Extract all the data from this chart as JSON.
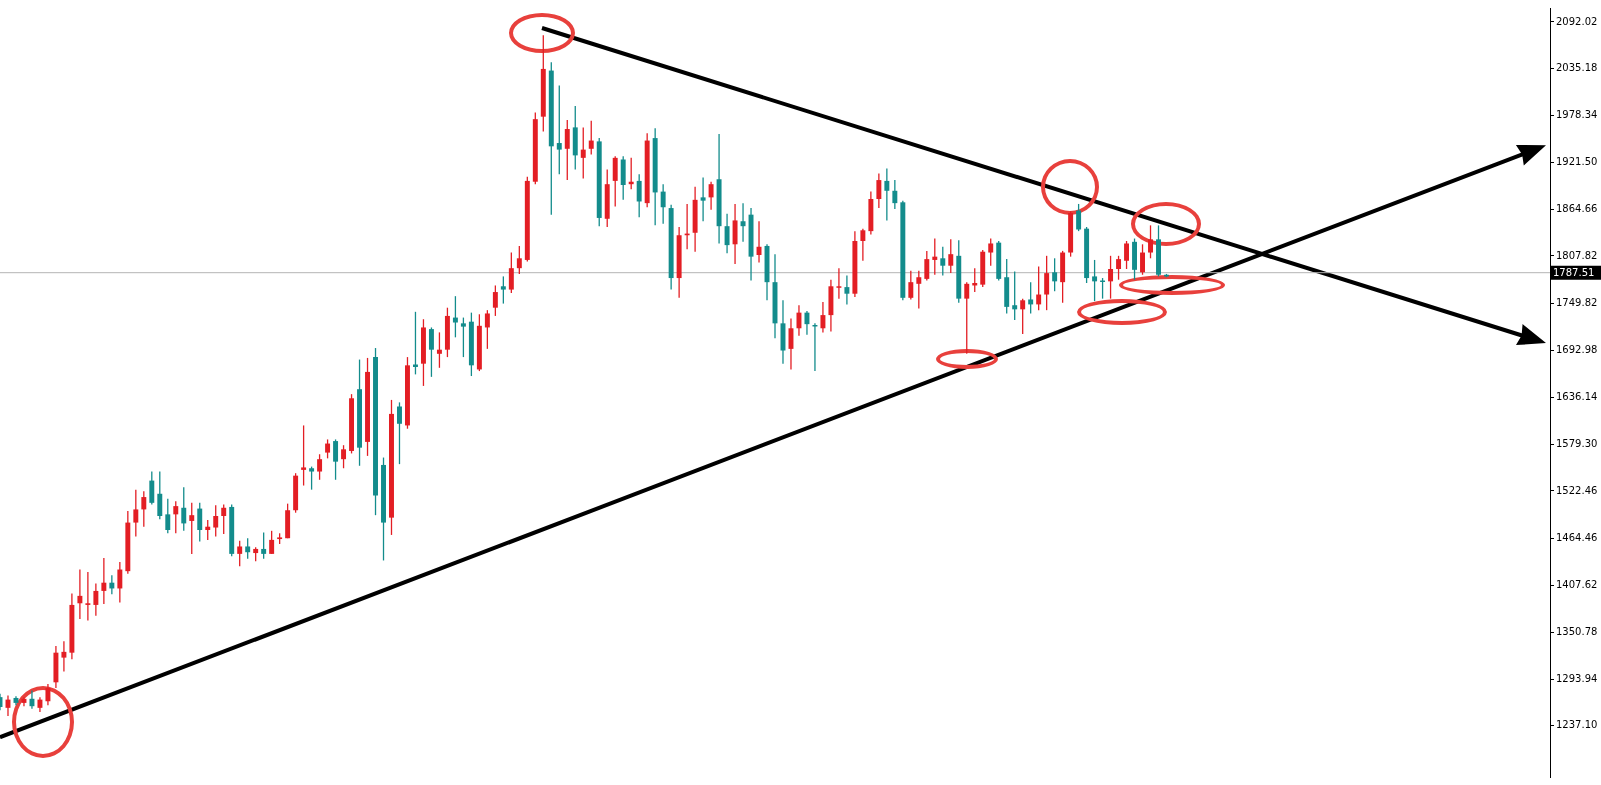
{
  "chart_data": {
    "type": "candlestick",
    "categories": [
      null,
      null,
      null,
      null,
      null,
      null,
      null,
      null,
      null,
      null,
      null,
      null,
      null,
      null,
      null,
      null,
      null,
      null,
      null,
      null,
      null,
      null,
      null,
      null,
      null,
      null,
      null,
      null,
      null,
      null,
      null,
      null,
      null,
      null,
      null,
      null,
      null,
      null,
      null,
      null,
      null,
      null,
      null,
      null,
      null,
      null,
      null,
      null,
      null,
      null,
      null,
      null,
      null,
      null,
      null,
      null,
      null,
      null,
      null,
      null,
      null,
      null,
      null,
      null,
      null,
      null,
      null,
      null,
      null,
      null,
      null,
      null,
      null,
      null,
      null,
      null,
      null,
      null,
      null,
      null,
      null,
      null,
      null,
      null,
      null,
      null,
      null,
      null,
      null,
      null,
      null,
      null,
      null,
      null,
      null,
      null,
      null,
      null,
      null,
      null,
      null,
      null,
      null,
      null,
      null,
      null,
      null,
      null,
      null,
      null,
      null,
      null,
      null,
      null,
      null,
      null,
      null,
      null,
      null,
      null,
      null,
      null,
      null,
      null,
      null,
      null,
      null,
      null,
      null,
      null,
      null,
      null,
      null,
      null,
      null,
      null,
      null,
      null,
      null,
      null,
      null,
      null,
      null,
      null,
      null,
      null,
      null,
      null,
      null,
      null,
      null,
      null,
      null,
      null,
      null,
      null,
      null,
      null,
      null,
      null,
      null,
      null,
      null,
      null,
      null,
      null,
      null,
      null,
      null,
      null,
      null,
      null,
      null,
      null,
      null,
      null,
      null,
      null,
      null,
      null,
      null,
      null,
      null,
      null,
      null,
      null,
      null,
      null,
      null,
      null,
      null,
      null,
      null,
      null,
      null
    ],
    "ohlc": [
      [
        1272,
        1276,
        1256,
        1260
      ],
      [
        1259,
        1274,
        1249,
        1269
      ],
      [
        1271,
        1273,
        1262,
        1265
      ],
      [
        1265,
        1272,
        1261,
        1270
      ],
      [
        1270,
        1280,
        1258,
        1261
      ],
      [
        1259,
        1272,
        1254,
        1269
      ],
      [
        1267,
        1288,
        1262,
        1283
      ],
      [
        1290,
        1334,
        1283,
        1326
      ],
      [
        1320,
        1340,
        1303,
        1327
      ],
      [
        1326,
        1398,
        1318,
        1384
      ],
      [
        1386,
        1427,
        1367,
        1395
      ],
      [
        1384,
        1424,
        1365,
        1386
      ],
      [
        1384,
        1410,
        1371,
        1401
      ],
      [
        1401,
        1441,
        1385,
        1411
      ],
      [
        1411,
        1420,
        1397,
        1404
      ],
      [
        1404,
        1436,
        1387,
        1427
      ],
      [
        1425,
        1498,
        1422,
        1484
      ],
      [
        1484,
        1524,
        1467,
        1500
      ],
      [
        1500,
        1522,
        1479,
        1515
      ],
      [
        1535,
        1546,
        1506,
        1508
      ],
      [
        1519,
        1546,
        1488,
        1492
      ],
      [
        1494,
        1513,
        1471,
        1475
      ],
      [
        1494,
        1510,
        1471,
        1504
      ],
      [
        1502,
        1527,
        1474,
        1483
      ],
      [
        1486,
        1508,
        1446,
        1493
      ],
      [
        1501,
        1508,
        1461,
        1475
      ],
      [
        1475,
        1487,
        1463,
        1479
      ],
      [
        1478,
        1505,
        1467,
        1492
      ],
      [
        1492,
        1506,
        1470,
        1502
      ],
      [
        1503,
        1506,
        1443,
        1446
      ],
      [
        1446,
        1462,
        1431,
        1455
      ],
      [
        1455,
        1465,
        1440,
        1448
      ],
      [
        1447,
        1454,
        1437,
        1452
      ],
      [
        1452,
        1472,
        1440,
        1446
      ],
      [
        1446,
        1474,
        1446,
        1463
      ],
      [
        1464,
        1471,
        1458,
        1466
      ],
      [
        1465,
        1507,
        1465,
        1499
      ],
      [
        1499,
        1544,
        1496,
        1541
      ],
      [
        1548,
        1602,
        1529,
        1551
      ],
      [
        1550,
        1552,
        1524,
        1546
      ],
      [
        1546,
        1567,
        1536,
        1561
      ],
      [
        1569,
        1585,
        1562,
        1580
      ],
      [
        1583,
        1585,
        1536,
        1558
      ],
      [
        1561,
        1578,
        1550,
        1573
      ],
      [
        1571,
        1640,
        1568,
        1635
      ],
      [
        1646,
        1682,
        1553,
        1575
      ],
      [
        1582,
        1684,
        1565,
        1667
      ],
      [
        1685,
        1696,
        1493,
        1517
      ],
      [
        1554,
        1563,
        1438,
        1484
      ],
      [
        1490,
        1633,
        1469,
        1616
      ],
      [
        1625,
        1630,
        1555,
        1604
      ],
      [
        1602,
        1685,
        1598,
        1675
      ],
      [
        1676,
        1740,
        1664,
        1673
      ],
      [
        1677,
        1731,
        1650,
        1721
      ],
      [
        1719,
        1721,
        1661,
        1694
      ],
      [
        1689,
        1715,
        1672,
        1694
      ],
      [
        1694,
        1745,
        1685,
        1735
      ],
      [
        1733,
        1759,
        1709,
        1727
      ],
      [
        1726,
        1733,
        1685,
        1722
      ],
      [
        1728,
        1739,
        1662,
        1675
      ],
      [
        1670,
        1737,
        1668,
        1723
      ],
      [
        1721,
        1742,
        1695,
        1738
      ],
      [
        1745,
        1772,
        1735,
        1764
      ],
      [
        1771,
        1783,
        1750,
        1767
      ],
      [
        1767,
        1812,
        1763,
        1793
      ],
      [
        1793,
        1820,
        1786,
        1805
      ],
      [
        1803,
        1904,
        1801,
        1899
      ],
      [
        1898,
        1982,
        1895,
        1974
      ],
      [
        1977,
        2076,
        1959,
        2035
      ],
      [
        2033,
        2043,
        1858,
        1941
      ],
      [
        1945,
        2015,
        1907,
        1937
      ],
      [
        1938,
        1973,
        1900,
        1962
      ],
      [
        1964,
        1990,
        1913,
        1930
      ],
      [
        1927,
        1964,
        1902,
        1937
      ],
      [
        1938,
        1972,
        1931,
        1948
      ],
      [
        1947,
        1951,
        1844,
        1854
      ],
      [
        1853,
        1913,
        1843,
        1895
      ],
      [
        1899,
        1929,
        1868,
        1927
      ],
      [
        1925,
        1929,
        1876,
        1894
      ],
      [
        1895,
        1927,
        1889,
        1898
      ],
      [
        1899,
        1907,
        1855,
        1874
      ],
      [
        1872,
        1957,
        1867,
        1948
      ],
      [
        1951,
        1963,
        1845,
        1885
      ],
      [
        1886,
        1895,
        1847,
        1867
      ],
      [
        1866,
        1870,
        1767,
        1781
      ],
      [
        1781,
        1843,
        1757,
        1833
      ],
      [
        1833,
        1871,
        1816,
        1835
      ],
      [
        1836,
        1892,
        1813,
        1876
      ],
      [
        1879,
        1903,
        1850,
        1875
      ],
      [
        1879,
        1898,
        1864,
        1895
      ],
      [
        1901,
        1956,
        1823,
        1844
      ],
      [
        1844,
        1859,
        1811,
        1821
      ],
      [
        1822,
        1871,
        1798,
        1851
      ],
      [
        1850,
        1872,
        1825,
        1844
      ],
      [
        1858,
        1866,
        1778,
        1807
      ],
      [
        1809,
        1850,
        1800,
        1819
      ],
      [
        1820,
        1822,
        1754,
        1776
      ],
      [
        1776,
        1810,
        1708,
        1726
      ],
      [
        1726,
        1754,
        1677,
        1693
      ],
      [
        1695,
        1732,
        1670,
        1720
      ],
      [
        1720,
        1748,
        1711,
        1739
      ],
      [
        1739,
        1741,
        1712,
        1725
      ],
      [
        1724,
        1726,
        1668,
        1723
      ],
      [
        1720,
        1752,
        1715,
        1736
      ],
      [
        1736,
        1779,
        1716,
        1771
      ],
      [
        1770,
        1793,
        1756,
        1771
      ],
      [
        1770,
        1784,
        1749,
        1762
      ],
      [
        1762,
        1838,
        1758,
        1826
      ],
      [
        1826,
        1841,
        1802,
        1839
      ],
      [
        1838,
        1886,
        1834,
        1877
      ],
      [
        1877,
        1908,
        1866,
        1900
      ],
      [
        1899,
        1914,
        1851,
        1887
      ],
      [
        1887,
        1900,
        1865,
        1872
      ],
      [
        1873,
        1875,
        1754,
        1757
      ],
      [
        1757,
        1790,
        1755,
        1776
      ],
      [
        1774,
        1790,
        1744,
        1782
      ],
      [
        1780,
        1814,
        1778,
        1804
      ],
      [
        1803,
        1829,
        1785,
        1807
      ],
      [
        1805,
        1819,
        1784,
        1796
      ],
      [
        1796,
        1828,
        1787,
        1810
      ],
      [
        1808,
        1827,
        1751,
        1756
      ],
      [
        1756,
        1776,
        1689,
        1774
      ],
      [
        1772,
        1793,
        1764,
        1775
      ],
      [
        1773,
        1815,
        1770,
        1813
      ],
      [
        1812,
        1829,
        1796,
        1823
      ],
      [
        1824,
        1826,
        1778,
        1780
      ],
      [
        1782,
        1804,
        1738,
        1746
      ],
      [
        1748,
        1789,
        1730,
        1743
      ],
      [
        1743,
        1756,
        1713,
        1754
      ],
      [
        1755,
        1776,
        1738,
        1749
      ],
      [
        1749,
        1795,
        1742,
        1761
      ],
      [
        1761,
        1808,
        1742,
        1787
      ],
      [
        1788,
        1805,
        1765,
        1777
      ],
      [
        1776,
        1814,
        1751,
        1812
      ],
      [
        1812,
        1862,
        1807,
        1860
      ],
      [
        1863,
        1871,
        1838,
        1840
      ],
      [
        1841,
        1843,
        1775,
        1781
      ],
      [
        1783,
        1803,
        1753,
        1777
      ],
      [
        1778,
        1781,
        1756,
        1777
      ],
      [
        1777,
        1808,
        1756,
        1792
      ],
      [
        1792,
        1808,
        1779,
        1804
      ],
      [
        1802,
        1826,
        1792,
        1823
      ],
      [
        1825,
        1829,
        1779,
        1791
      ],
      [
        1788,
        1822,
        1785,
        1812
      ],
      [
        1812,
        1845,
        1805,
        1828
      ],
      [
        1828,
        1845,
        1783,
        1785
      ],
      [
        1785,
        1786,
        1782,
        1783
      ],
      null,
      null,
      null,
      null,
      null,
      null,
      null,
      null,
      null,
      null,
      null,
      null,
      null,
      null,
      null,
      null,
      null,
      null,
      null,
      null,
      null,
      null,
      null,
      null,
      null,
      null,
      null,
      null,
      null,
      null,
      null,
      null,
      null,
      null,
      null,
      null,
      null,
      null,
      null,
      null,
      null,
      null,
      null,
      null,
      null,
      null,
      null,
      null
    ],
    "colors": [
      "#138c8c",
      "#e31e24",
      "#138c8c",
      "#e31e24",
      "#138c8c",
      "#e31e24",
      "#e31e24",
      "#e31e24",
      "#e31e24",
      "#e31e24",
      "#e31e24",
      "#e31e24",
      "#e31e24",
      "#e31e24",
      "#138c8c",
      "#e31e24",
      "#e31e24",
      "#e31e24",
      "#e31e24",
      "#138c8c",
      "#138c8c",
      "#138c8c",
      "#e31e24",
      "#138c8c",
      "#e31e24",
      "#138c8c",
      "#e31e24",
      "#e31e24",
      "#e31e24",
      "#138c8c",
      "#e31e24",
      "#138c8c",
      "#e31e24",
      "#138c8c",
      "#e31e24",
      "#e31e24",
      "#e31e24",
      "#e31e24",
      "#e31e24",
      "#138c8c",
      "#e31e24",
      "#e31e24",
      "#138c8c",
      "#e31e24",
      "#e31e24",
      "#138c8c",
      "#e31e24",
      "#138c8c",
      "#138c8c",
      "#e31e24",
      "#138c8c",
      "#e31e24",
      "#138c8c",
      "#e31e24",
      "#138c8c",
      "#e31e24",
      "#e31e24",
      "#138c8c",
      "#138c8c",
      "#138c8c",
      "#e31e24",
      "#e31e24",
      "#e31e24",
      "#138c8c",
      "#e31e24",
      "#e31e24",
      "#e31e24",
      "#e31e24",
      "#e31e24",
      "#138c8c",
      "#138c8c",
      "#e31e24",
      "#138c8c",
      "#e31e24",
      "#e31e24",
      "#138c8c",
      "#e31e24",
      "#e31e24",
      "#138c8c",
      "#e31e24",
      "#138c8c",
      "#e31e24",
      "#138c8c",
      "#138c8c",
      "#138c8c",
      "#e31e24",
      "#e31e24",
      "#e31e24",
      "#138c8c",
      "#e31e24",
      "#138c8c",
      "#138c8c",
      "#e31e24",
      "#138c8c",
      "#138c8c",
      "#e31e24",
      "#138c8c",
      "#138c8c",
      "#138c8c",
      "#e31e24",
      "#e31e24",
      "#138c8c",
      "#138c8c",
      "#e31e24",
      "#e31e24",
      "#e31e24",
      "#138c8c",
      "#e31e24",
      "#e31e24",
      "#e31e24",
      "#e31e24",
      "#138c8c",
      "#138c8c",
      "#138c8c",
      "#e31e24",
      "#e31e24",
      "#e31e24",
      "#e31e24",
      "#138c8c",
      "#e31e24",
      "#138c8c",
      "#e31e24",
      "#e31e24",
      "#e31e24",
      "#e31e24",
      "#138c8c",
      "#138c8c",
      "#138c8c",
      "#e31e24",
      "#138c8c",
      "#e31e24",
      "#e31e24",
      "#138c8c",
      "#e31e24",
      "#e31e24",
      "#138c8c",
      "#138c8c",
      "#138c8c",
      "#138c8c",
      "#e31e24",
      "#e31e24",
      "#e31e24",
      "#138c8c",
      "#e31e24",
      "#e31e24",
      "#138c8c",
      "#138c8c",
      null,
      null,
      null,
      null,
      null,
      null,
      null,
      null,
      null,
      null,
      null,
      null,
      null,
      null,
      null,
      null,
      null,
      null,
      null,
      null,
      null,
      null,
      null,
      null,
      null,
      null,
      null,
      null,
      null,
      null,
      null,
      null,
      null,
      null,
      null,
      null,
      null,
      null,
      null,
      null,
      null,
      null,
      null,
      null,
      null,
      null,
      null,
      null
    ],
    "ylim": [
      1175,
      2109
    ],
    "yticks": [
      2092.02,
      2035.18,
      1978.34,
      {
        "value": 1921.5,
        "label": "1921.50"
      },
      1864.66,
      1807.82,
      1749.82,
      1692.98,
      1636.14,
      {
        "value": 1579.3,
        "label": "1579.30"
      },
      1522.46,
      1464.46,
      1407.62,
      1350.78,
      1293.94,
      {
        "value": 1237.1,
        "label": "1237.10"
      }
    ],
    "ref_lines": [
      {
        "axis": "y",
        "value": 1787.51,
        "label": "1787.51",
        "color": "#b4b4b4"
      }
    ],
    "tick_labels": "y",
    "grid": false
  }
}
